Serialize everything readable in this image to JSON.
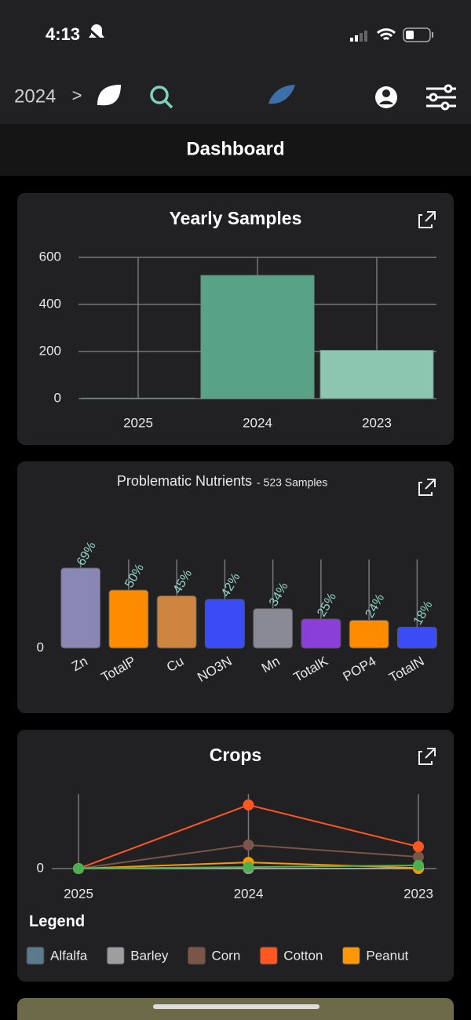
{
  "status_bar": {
    "time": "4:13"
  },
  "nav": {
    "year": "2024",
    "separator": ">"
  },
  "header": {
    "title": "Dashboard"
  },
  "chart_data": [
    {
      "type": "bar",
      "title": "Yearly Samples",
      "categories": [
        "2025",
        "2024",
        "2023"
      ],
      "values": [
        2,
        523,
        205
      ],
      "colors": [
        "#5c9c86",
        "#58a287",
        "#8cc5b0"
      ],
      "ylim": [
        0,
        600
      ],
      "yticks": [
        0,
        200,
        400,
        600
      ],
      "grid": true
    },
    {
      "type": "bar",
      "title": "Problematic Nutrients",
      "subtitle": "- 523 Samples",
      "categories": [
        "Zn",
        "TotalP",
        "Cu",
        "NO3N",
        "Mn",
        "TotalK",
        "POP4",
        "TotalN"
      ],
      "values": [
        69,
        50,
        45,
        42,
        34,
        25,
        24,
        18
      ],
      "value_labels": [
        "69%",
        "50%",
        "45%",
        "42%",
        "34%",
        "25%",
        "24%",
        "18%"
      ],
      "colors": [
        "#8a87b5",
        "#ff8c00",
        "#cd853f",
        "#3a4cf5",
        "#8a8a96",
        "#8a3fd8",
        "#ff8c00",
        "#3a4cf5"
      ],
      "ylim": [
        0,
        100
      ],
      "yticks": [
        0
      ],
      "grid": false
    },
    {
      "type": "line",
      "title": "Crops",
      "legend_title": "Legend",
      "categories": [
        "2025",
        "2024",
        "2023"
      ],
      "series": [
        {
          "name": "Alfalfa",
          "color": "#5b7a8c",
          "values": [
            0,
            0,
            0
          ]
        },
        {
          "name": "Barley",
          "color": "#9e9e9e",
          "values": [
            0,
            0,
            0
          ]
        },
        {
          "name": "Corn",
          "color": "#7a5548",
          "values": [
            0,
            95,
            47
          ]
        },
        {
          "name": "Cotton",
          "color": "#ff5722",
          "values": [
            0,
            256,
            88
          ]
        },
        {
          "name": "Peanut",
          "color": "#ff9800",
          "values": [
            0,
            25,
            2
          ]
        },
        {
          "color": "#4caf50",
          "values": [
            0,
            6,
            13
          ]
        }
      ],
      "ylim": [
        0,
        300
      ],
      "yticks": [
        0
      ],
      "grid": true
    }
  ]
}
